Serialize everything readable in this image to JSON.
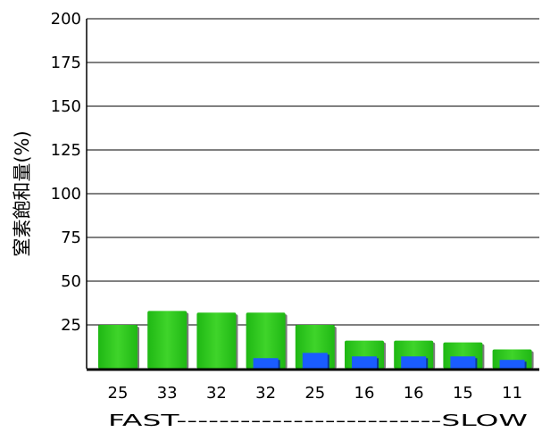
{
  "chart_data": {
    "type": "bar",
    "ylabel": "窒素飽和量(%)",
    "ylim": [
      0,
      200
    ],
    "yticks": [
      25,
      50,
      75,
      100,
      125,
      150,
      175,
      200
    ],
    "grid": true,
    "categories": [
      "25",
      "33",
      "32",
      "32",
      "25",
      "16",
      "16",
      "15",
      "11"
    ],
    "series": [
      {
        "values": [
          25,
          33,
          32,
          32,
          25,
          16,
          16,
          15,
          11
        ],
        "color": "#2ec81c"
      },
      {
        "values": [
          0,
          0,
          0,
          6,
          9,
          7,
          7,
          7,
          5
        ],
        "color": "#1a5cff"
      }
    ],
    "footer": "FAST-------------------------SLOW"
  }
}
